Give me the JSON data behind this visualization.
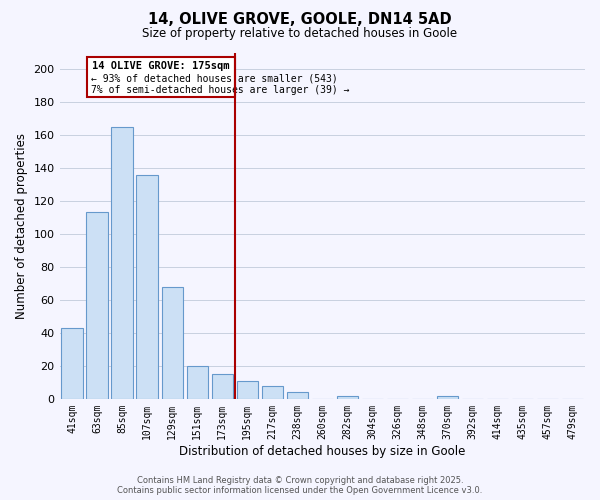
{
  "title": "14, OLIVE GROVE, GOOLE, DN14 5AD",
  "subtitle": "Size of property relative to detached houses in Goole",
  "xlabel": "Distribution of detached houses by size in Goole",
  "ylabel": "Number of detached properties",
  "categories": [
    "41sqm",
    "63sqm",
    "85sqm",
    "107sqm",
    "129sqm",
    "151sqm",
    "173sqm",
    "195sqm",
    "217sqm",
    "238sqm",
    "260sqm",
    "282sqm",
    "304sqm",
    "326sqm",
    "348sqm",
    "370sqm",
    "392sqm",
    "414sqm",
    "435sqm",
    "457sqm",
    "479sqm"
  ],
  "values": [
    43,
    113,
    165,
    136,
    68,
    20,
    15,
    11,
    8,
    4,
    0,
    2,
    0,
    0,
    0,
    2,
    0,
    0,
    0,
    0,
    0
  ],
  "bar_color": "#cce0f5",
  "bar_edge_color": "#6699cc",
  "highlight_bar_index": 6,
  "vline_color": "#aa0000",
  "annotation_title": "14 OLIVE GROVE: 175sqm",
  "annotation_line1": "← 93% of detached houses are smaller (543)",
  "annotation_line2": "7% of semi-detached houses are larger (39) →",
  "annotation_box_color": "#aa0000",
  "ylim": [
    0,
    210
  ],
  "yticks": [
    0,
    20,
    40,
    60,
    80,
    100,
    120,
    140,
    160,
    180,
    200
  ],
  "footer_line1": "Contains HM Land Registry data © Crown copyright and database right 2025.",
  "footer_line2": "Contains public sector information licensed under the Open Government Licence v3.0.",
  "background_color": "#f5f5ff",
  "grid_color": "#c8d0e0"
}
